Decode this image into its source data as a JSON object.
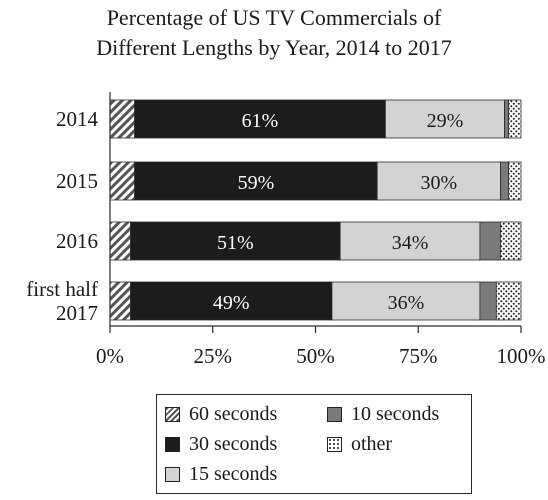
{
  "chart_data": {
    "type": "bar",
    "orientation": "horizontal",
    "stacked": true,
    "title_lines": [
      "Percentage of US TV Commercials of",
      "Different Lengths by Year, 2014 to 2017"
    ],
    "categories": [
      "2014",
      "2015",
      "2016",
      "first half 2017"
    ],
    "category_lines": [
      [
        "2014"
      ],
      [
        "2015"
      ],
      [
        "2016"
      ],
      [
        "first half",
        "2017"
      ]
    ],
    "series": [
      {
        "name": "60 seconds",
        "values": [
          6,
          6,
          5,
          5
        ],
        "pattern": "diagonal",
        "color": "#ffffff"
      },
      {
        "name": "30 seconds",
        "values": [
          61,
          59,
          51,
          49
        ],
        "pattern": "solid",
        "color": "#1c1c1c"
      },
      {
        "name": "15 seconds",
        "values": [
          29,
          30,
          34,
          36
        ],
        "pattern": "solid",
        "color": "#d3d3d3"
      },
      {
        "name": "10 seconds",
        "values": [
          1,
          2,
          5,
          4
        ],
        "pattern": "solid",
        "color": "#7a7a7a"
      },
      {
        "name": "other",
        "values": [
          3,
          3,
          5,
          6
        ],
        "pattern": "dots",
        "color": "#ffffff"
      }
    ],
    "data_labels": [
      {
        "series": "30 seconds",
        "labels": [
          "61%",
          "59%",
          "51%",
          "49%"
        ],
        "color": "#ffffff"
      },
      {
        "series": "15 seconds",
        "labels": [
          "29%",
          "30%",
          "34%",
          "36%"
        ],
        "color": "#1c1c1c"
      }
    ],
    "xlim": [
      0,
      100
    ],
    "xticks": [
      0,
      25,
      50,
      75,
      100
    ],
    "xtick_labels": [
      "0%",
      "25%",
      "50%",
      "75%",
      "100%"
    ],
    "xlabel": "",
    "ylabel": "",
    "legend_position": "bottom",
    "grid": false
  },
  "legend": {
    "items": [
      "60 seconds",
      "10 seconds",
      "30 seconds",
      "other",
      "15 seconds"
    ]
  }
}
